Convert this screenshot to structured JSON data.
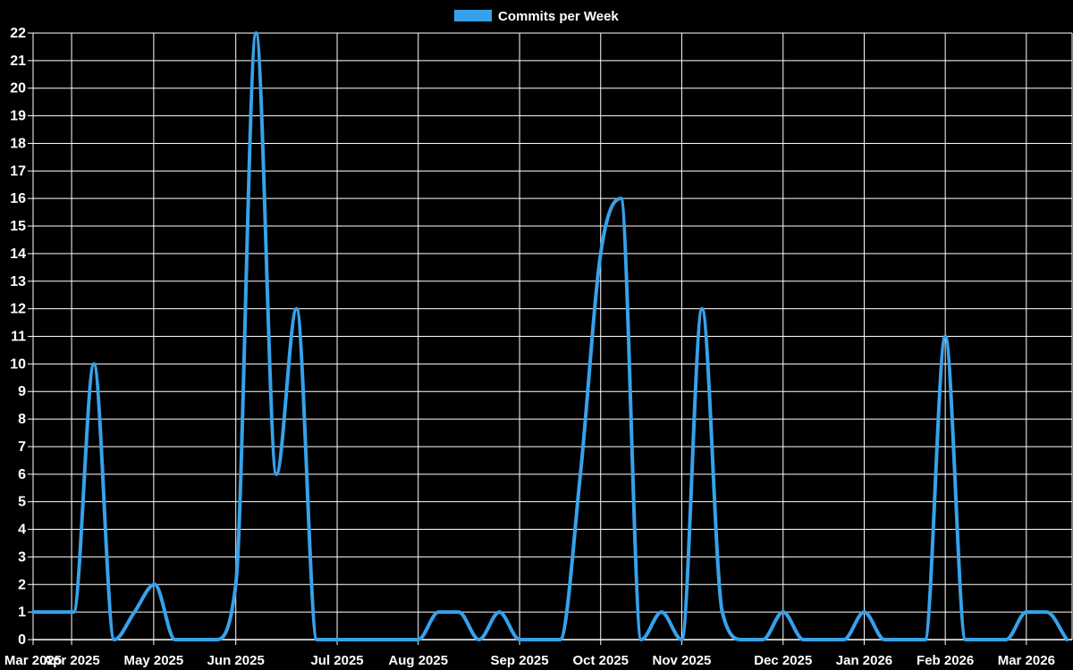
{
  "legend": {
    "label": "Commits per Week"
  },
  "chart_data": {
    "type": "line",
    "title": "Commits per Week",
    "legend_position": "top",
    "background_color": "#000000",
    "grid_color": "#ffffff",
    "text_color": "#ffffff",
    "grid": true,
    "x_axis": {
      "unit": "weeks",
      "tick_labels": [
        "Mar 2025",
        "Apr 2025",
        "May 2025",
        "Jun 2025",
        "Jul 2025",
        "Aug 2025",
        "Sep 2025",
        "Oct 2025",
        "Nov 2025",
        "Dec 2025",
        "Jan 2026",
        "Feb 2026",
        "Mar 2026"
      ],
      "tick_week_positions": [
        0,
        1.9,
        5.95,
        10,
        15,
        19,
        24,
        28,
        32,
        37,
        41,
        45,
        49
      ]
    },
    "y_axis": {
      "tick_labels": [
        "0",
        "1",
        "2",
        "3",
        "4",
        "5",
        "6",
        "7",
        "8",
        "9",
        "10",
        "11",
        "12",
        "13",
        "14",
        "15",
        "16",
        "17",
        "18",
        "19",
        "20",
        "21",
        "22"
      ],
      "min": 0,
      "max": 22
    },
    "ylim": [
      0,
      22
    ],
    "series": [
      {
        "name": "Commits per Week",
        "color": "#36a2eb",
        "values": [
          1,
          1,
          1,
          10,
          0,
          1,
          2,
          0,
          0,
          0,
          2,
          22,
          6,
          12,
          0,
          0,
          0,
          0,
          0,
          0,
          1,
          1,
          0,
          1,
          0,
          0,
          0,
          6,
          14,
          16,
          0,
          1,
          0,
          12,
          1,
          0,
          0,
          1,
          0,
          0,
          0,
          1,
          0,
          0,
          0,
          11,
          0,
          0,
          0,
          1,
          1,
          0
        ]
      }
    ]
  }
}
